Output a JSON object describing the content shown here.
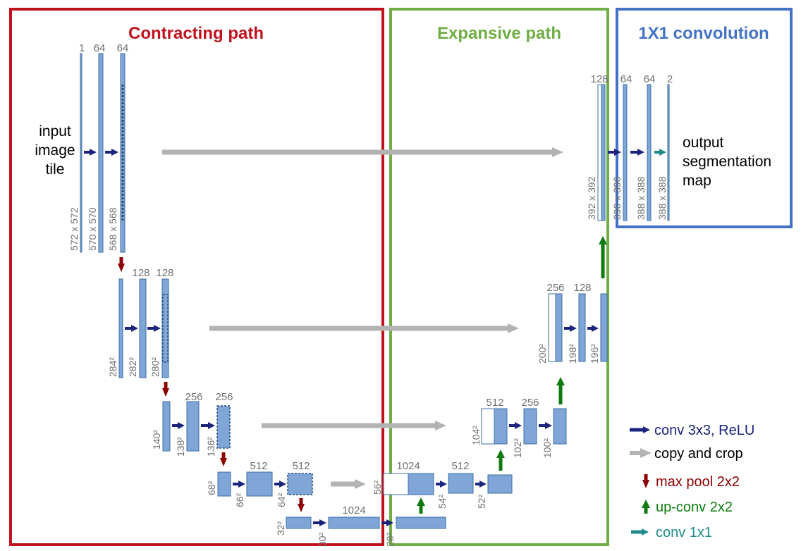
{
  "colors": {
    "contracting": "#c0121d",
    "expansive": "#70ad47",
    "conv1x1_region": "#4472c4",
    "block_fill": "#7fa6d6",
    "block_stroke": "#3d6fa5",
    "conv_arrow": "#1a237e",
    "copy_arrow": "#b3b3b3",
    "pool_arrow": "#8b0000",
    "upconv_arrow": "#0f7a0f",
    "conv1x1_arrow": "#1f8a8a",
    "label_gray": "#707070"
  },
  "regions": {
    "contracting": "Contracting path",
    "expansive": "Expansive path",
    "conv1x1": "1X1 convolution"
  },
  "texts": {
    "input": [
      "input",
      "image",
      "tile"
    ],
    "output": [
      "output",
      "segmentation",
      "map"
    ]
  },
  "channel_labels": {
    "c1_in": "1",
    "c1_a": "64",
    "c1_b": "64",
    "c2_a": "128",
    "c2_b": "128",
    "c3_a": "256",
    "c3_b": "256",
    "c4_a": "512",
    "c4_b": "512",
    "c5_a": "1024",
    "e4_in": "1024",
    "e4_a": "512",
    "e3_in": "512",
    "e3_a": "256",
    "e2_in": "256",
    "e2_a": "128",
    "e1_in": "128",
    "e1_a": "64",
    "e1_b": "64",
    "out": "2"
  },
  "size_labels": {
    "c1_in": "572 x 572",
    "c1_a": "570 x 570",
    "c1_b": "568 x 568",
    "c2_in": "284²",
    "c2_a": "282²",
    "c2_b": "280²",
    "c3_in": "140²",
    "c3_a": "138²",
    "c3_b": "136²",
    "c4_in": "68²",
    "c4_a": "66²",
    "c4_b": "64²",
    "c5_in": "32²",
    "c5_a": "30²",
    "c5_b": "28²",
    "e4_in": "56²",
    "e4_a": "54²",
    "e4_b": "52²",
    "e3_in": "104²",
    "e3_a": "102²",
    "e3_b": "100²",
    "e2_in": "200²",
    "e2_a": "198²",
    "e2_b": "196²",
    "e1_in": "392 x 392",
    "e1_a": "390 x 390",
    "e1_b": "388 x 388",
    "out": "388 x 388"
  },
  "legend": [
    {
      "icon": "conv",
      "label": "conv 3x3, ReLU"
    },
    {
      "icon": "copy",
      "label": "copy and crop"
    },
    {
      "icon": "pool",
      "label": "max pool 2x2"
    },
    {
      "icon": "upconv",
      "label": "up-conv 2x2"
    },
    {
      "icon": "conv1x1",
      "label": "conv 1x1"
    }
  ]
}
